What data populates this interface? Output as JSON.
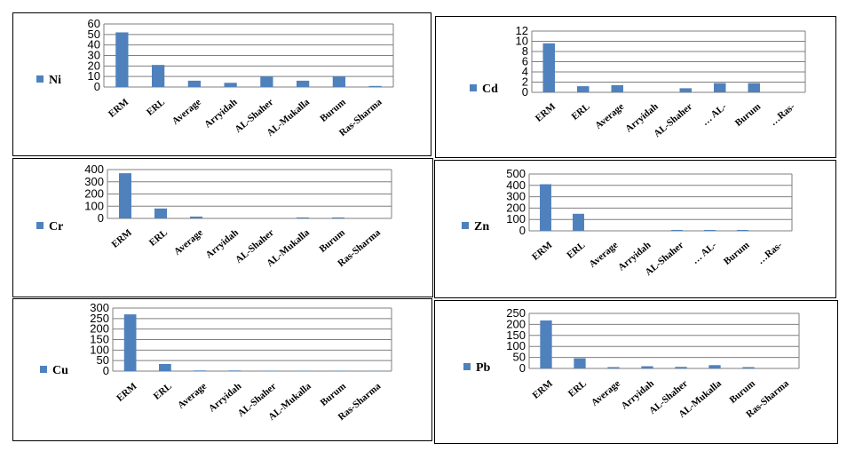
{
  "chart_data": [
    {
      "type": "bar",
      "categories": [
        "ERM",
        "ERL",
        "Average",
        "Arryidah",
        "AL-Shaher",
        "AL-Mukalla",
        "Burum",
        "Ras-Sharma"
      ],
      "series": [
        {
          "name": "Ni",
          "values": [
            52,
            21,
            6,
            4,
            10,
            6,
            10,
            1
          ]
        }
      ],
      "ylim": [
        0,
        60
      ],
      "yticks": [
        0,
        10,
        20,
        30,
        40,
        50,
        60
      ],
      "grid": true,
      "legend": "left",
      "color": "#4F81BD"
    },
    {
      "type": "bar",
      "categories": [
        "ERM",
        "ERL",
        "Average",
        "Arryidah",
        "AL-Shaher",
        "… AL-",
        "Burum",
        "…Ras-"
      ],
      "series": [
        {
          "name": "Cd",
          "values": [
            9.6,
            1.2,
            1.4,
            0,
            0.8,
            1.8,
            1.8,
            0
          ]
        }
      ],
      "ylim": [
        0,
        12
      ],
      "yticks": [
        0,
        2,
        4,
        6,
        8,
        10,
        12
      ],
      "grid": true,
      "legend": "left",
      "color": "#4F81BD"
    },
    {
      "type": "bar",
      "categories": [
        "ERM",
        "ERL",
        "Average",
        "Arryidah",
        "AL-Shaher",
        "AL-Mukalla",
        "Burum",
        "Ras-Sharma"
      ],
      "series": [
        {
          "name": "Cr",
          "values": [
            370,
            81,
            15,
            0,
            0,
            8,
            8,
            0
          ]
        }
      ],
      "ylim": [
        0,
        400
      ],
      "yticks": [
        0,
        100,
        200,
        300,
        400
      ],
      "grid": true,
      "legend": "left",
      "color": "#4F81BD"
    },
    {
      "type": "bar",
      "categories": [
        "ERM",
        "ERL",
        "Average",
        "Arryidah",
        "AL-Shaher",
        "… AL-",
        "Burum",
        "…Ras-"
      ],
      "series": [
        {
          "name": "Zn",
          "values": [
            410,
            150,
            0,
            0,
            8,
            8,
            8,
            0
          ]
        }
      ],
      "ylim": [
        0,
        500
      ],
      "yticks": [
        0,
        100,
        200,
        300,
        400,
        500
      ],
      "grid": true,
      "legend": "left",
      "color": "#4F81BD"
    },
    {
      "type": "bar",
      "categories": [
        "ERM",
        "ERL",
        "Average",
        "Arryidah",
        "AL-Shaher",
        "AL-Mukalla",
        "Burum",
        "Ras-Sharma"
      ],
      "series": [
        {
          "name": "Cu",
          "values": [
            270,
            34,
            3,
            3,
            2,
            2,
            2,
            1
          ]
        }
      ],
      "ylim": [
        0,
        300
      ],
      "yticks": [
        0,
        50,
        100,
        150,
        200,
        250,
        300
      ],
      "grid": true,
      "legend": "left",
      "color": "#4F81BD"
    },
    {
      "type": "bar",
      "categories": [
        "ERM",
        "ERL",
        "Average",
        "Arryidah",
        "AL-Shaher",
        "AL-Mukalla",
        "Burum",
        "Ras-Sharma"
      ],
      "series": [
        {
          "name": "Pb",
          "values": [
            218,
            46,
            6,
            10,
            7,
            15,
            6,
            0
          ]
        }
      ],
      "ylim": [
        0,
        250
      ],
      "yticks": [
        0,
        50,
        100,
        150,
        200,
        250
      ],
      "grid": true,
      "legend": "left",
      "color": "#4F81BD"
    }
  ]
}
